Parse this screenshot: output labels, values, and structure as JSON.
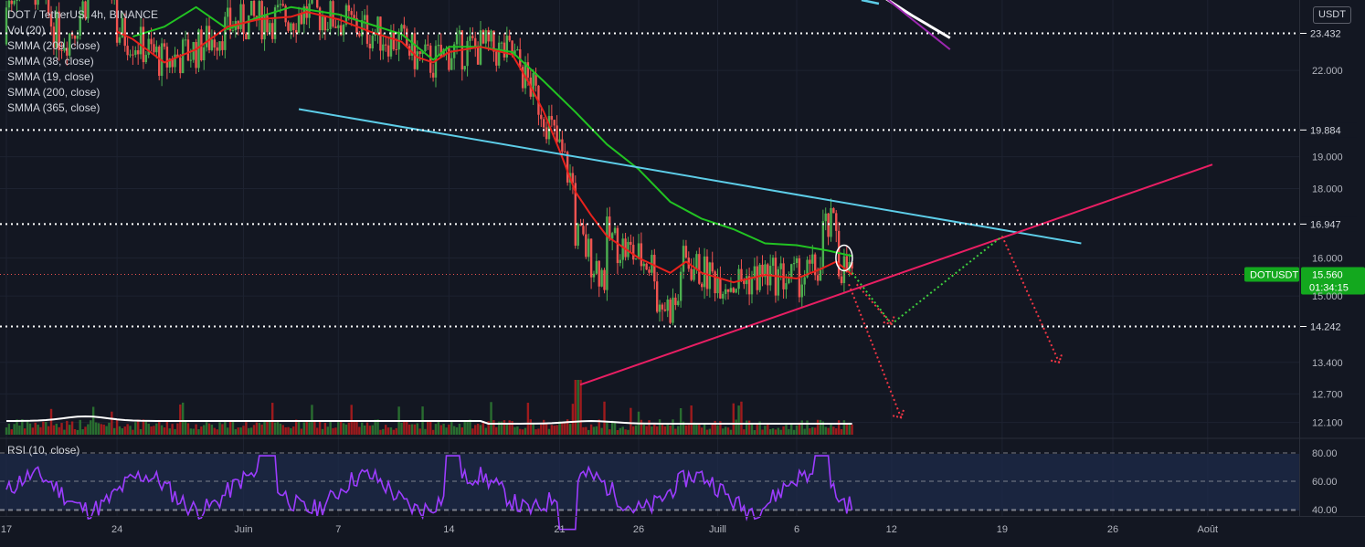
{
  "header": {
    "symbol_line": "DOT / TetherUS, 4h, BINANCE",
    "indicators": [
      "Vol (20)",
      "SMMA (209, close)",
      "SMMA (38, close)",
      "SMMA (19, close)",
      "SMMA (200, close)",
      "SMMA (365, close)"
    ],
    "currency": "USDT"
  },
  "price_scale": {
    "ticks": [
      {
        "label": "22.000",
        "value": 22.0
      },
      {
        "label": "19.000",
        "value": 19.0
      },
      {
        "label": "18.000",
        "value": 18.0
      },
      {
        "label": "16.000",
        "value": 16.0
      },
      {
        "label": "15.000",
        "value": 15.0
      },
      {
        "label": "13.400",
        "value": 13.4
      },
      {
        "label": "12.700",
        "value": 12.7
      },
      {
        "label": "12.100",
        "value": 12.1
      }
    ],
    "levels": [
      {
        "label": "23.432",
        "value": 23.432
      },
      {
        "label": "19.884",
        "value": 19.884
      },
      {
        "label": "16.947",
        "value": 16.947
      },
      {
        "label": "14.242",
        "value": 14.242
      }
    ],
    "current": {
      "symbol": "DOTUSDT",
      "price": "15.560",
      "countdown": "01:34:15",
      "value": 15.56
    }
  },
  "rsi": {
    "label": "RSI (10, close)",
    "ticks": [
      {
        "label": "80.00",
        "value": 80
      },
      {
        "label": "60.00",
        "value": 60
      },
      {
        "label": "40.00",
        "value": 40
      }
    ]
  },
  "time_axis": [
    {
      "label": "17",
      "day": 0
    },
    {
      "label": "24",
      "day": 7
    },
    {
      "label": "Juin",
      "day": 15
    },
    {
      "label": "7",
      "day": 21
    },
    {
      "label": "14",
      "day": 28
    },
    {
      "label": "21",
      "day": 35
    },
    {
      "label": "26",
      "day": 40
    },
    {
      "label": "Juill",
      "day": 45
    },
    {
      "label": "6",
      "day": 50
    },
    {
      "label": "12",
      "day": 56
    },
    {
      "label": "19",
      "day": 63
    },
    {
      "label": "26",
      "day": 70
    },
    {
      "label": "Août",
      "day": 76
    }
  ],
  "colors": {
    "background": "#131722",
    "up": "#26a69a",
    "up_candle": "#4caf50",
    "down": "#ef5350",
    "smma_green": "#22c322",
    "smma_red": "#e8221c",
    "smma_white": "#ffffff",
    "smma_purple": "#9c27b0",
    "trend_cyan": "#5dcde8",
    "trend_pink": "#e91e63",
    "rsi_line": "#9c3cff",
    "badge_green": "#13a81e"
  },
  "chart_data": {
    "type": "line",
    "x_unit": "days since May 17",
    "series": [
      {
        "name": "SMMA (38, close)",
        "color": "#22c322",
        "points": [
          [
            8,
            23.3
          ],
          [
            10,
            23.7
          ],
          [
            12,
            24.5
          ],
          [
            14,
            23.6
          ],
          [
            16,
            24.1
          ],
          [
            18,
            24.5
          ],
          [
            21,
            24.2
          ],
          [
            23,
            23.8
          ],
          [
            25,
            23.4
          ],
          [
            27,
            22.4
          ],
          [
            28,
            22.9
          ],
          [
            30,
            22.9
          ],
          [
            32,
            22.7
          ],
          [
            34,
            21.6
          ],
          [
            36,
            20.5
          ],
          [
            38,
            19.4
          ],
          [
            40,
            18.6
          ],
          [
            42,
            17.6
          ],
          [
            44,
            17.1
          ],
          [
            46,
            16.8
          ],
          [
            48,
            16.4
          ],
          [
            50,
            16.35
          ],
          [
            52,
            16.2
          ],
          [
            53.5,
            16.05
          ]
        ]
      },
      {
        "name": "SMMA (19, close)",
        "color": "#e8221c",
        "points": [
          [
            7,
            23.5
          ],
          [
            8,
            23.2
          ],
          [
            10,
            22.3
          ],
          [
            12,
            22.8
          ],
          [
            14,
            23.7
          ],
          [
            16,
            24.0
          ],
          [
            18,
            24.1
          ],
          [
            19,
            24.3
          ],
          [
            21,
            24.0
          ],
          [
            23,
            23.5
          ],
          [
            25,
            23.1
          ],
          [
            26,
            22.5
          ],
          [
            27,
            22.3
          ],
          [
            28,
            22.7
          ],
          [
            30,
            22.9
          ],
          [
            32,
            22.6
          ],
          [
            33,
            21.6
          ],
          [
            34,
            20.5
          ],
          [
            35,
            19.2
          ],
          [
            36,
            17.9
          ],
          [
            37,
            17.2
          ],
          [
            38,
            16.6
          ],
          [
            40,
            16.0
          ],
          [
            42,
            15.6
          ],
          [
            43,
            15.9
          ],
          [
            44,
            15.6
          ],
          [
            46,
            15.35
          ],
          [
            48,
            15.55
          ],
          [
            50,
            15.45
          ],
          [
            51.5,
            15.7
          ],
          [
            52.5,
            15.9
          ],
          [
            53.5,
            15.55
          ]
        ]
      },
      {
        "name": "SMMA (200, close)",
        "color": "#ffffff",
        "points": [
          [
            54.5,
            25.35
          ],
          [
            57.3,
            24.15
          ],
          [
            59.7,
            23.25
          ]
        ]
      },
      {
        "name": "SMMA (209, close)",
        "color": "#9c27b0",
        "points": [
          [
            54.5,
            25.5
          ],
          [
            57.3,
            24.0
          ],
          [
            59.7,
            22.8
          ]
        ]
      }
    ],
    "annotations": {
      "resistance_line": {
        "from": [
          18.5,
          20.6
        ],
        "to": [
          68.0,
          16.4
        ]
      },
      "support_line": {
        "from": [
          36.3,
          12.9
        ],
        "to": [
          76.3,
          18.75
        ]
      },
      "green_path": [
        [
          53.5,
          15.6
        ],
        [
          56.0,
          14.3
        ],
        [
          63.0,
          16.6
        ]
      ],
      "red_paths": [
        [
          [
            53.8,
            15.3
          ],
          [
            56.0,
            14.3
          ]
        ],
        [
          [
            53.3,
            15.3
          ],
          [
            56.6,
            12.2
          ]
        ],
        [
          [
            63.0,
            16.6
          ],
          [
            66.6,
            13.4
          ]
        ]
      ],
      "circle_marker": [
        53.0,
        16.0
      ]
    }
  }
}
